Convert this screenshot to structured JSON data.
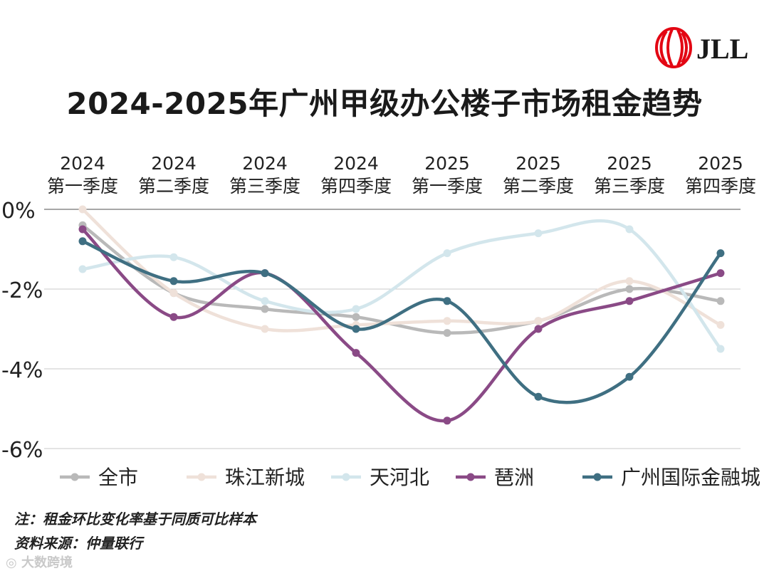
{
  "brand": {
    "logo_text": "JLL",
    "logo_color": "#e30613"
  },
  "title": "2024-2025年广州甲级办公楼子市场租金趋势",
  "notes": {
    "line1": "注：租金环比变化率基于同质可比样本",
    "line2": "资料来源：仲量联行"
  },
  "watermark": "大数跨境",
  "chart_data": {
    "type": "line",
    "title": "2024-2025年广州甲级办公楼子市场租金趋势",
    "xlabel": "",
    "ylabel": "",
    "x_position": "top",
    "categories": [
      {
        "year": "2024",
        "quarter": "第一季度"
      },
      {
        "year": "2024",
        "quarter": "第二季度"
      },
      {
        "year": "2024",
        "quarter": "第三季度"
      },
      {
        "year": "2024",
        "quarter": "第四季度"
      },
      {
        "year": "2025",
        "quarter": "第一季度"
      },
      {
        "year": "2025",
        "quarter": "第二季度"
      },
      {
        "year": "2025",
        "quarter": "第三季度"
      },
      {
        "year": "2025",
        "quarter": "第四季度"
      }
    ],
    "ylim": [
      -6,
      0
    ],
    "yticks": [
      {
        "value": 0,
        "label": "0%"
      },
      {
        "value": -2,
        "label": "-2%"
      },
      {
        "value": -4,
        "label": "-4%"
      },
      {
        "value": -6,
        "label": "-6%"
      }
    ],
    "grid": true,
    "legend_position": "bottom",
    "series": [
      {
        "name": "全市",
        "color": "#b9b9b9",
        "values": [
          -0.4,
          -2.1,
          -2.5,
          -2.7,
          -3.1,
          -2.8,
          -2.0,
          -2.3
        ]
      },
      {
        "name": "珠江新城",
        "color": "#efe1d9",
        "values": [
          0.0,
          -2.1,
          -3.0,
          -2.9,
          -2.8,
          -2.8,
          -1.8,
          -2.9
        ]
      },
      {
        "name": "天河北",
        "color": "#d3e6ec",
        "values": [
          -1.5,
          -1.2,
          -2.3,
          -2.5,
          -1.1,
          -0.6,
          -0.5,
          -3.5
        ]
      },
      {
        "name": "琶洲",
        "color": "#8a4a86",
        "values": [
          -0.5,
          -2.7,
          -1.6,
          -3.6,
          -5.3,
          -3.0,
          -2.3,
          -1.6
        ]
      },
      {
        "name": "广州国际金融城",
        "color": "#3f6f82",
        "values": [
          -0.8,
          -1.8,
          -1.6,
          -3.0,
          -2.3,
          -4.7,
          -4.2,
          -1.1
        ]
      }
    ]
  }
}
